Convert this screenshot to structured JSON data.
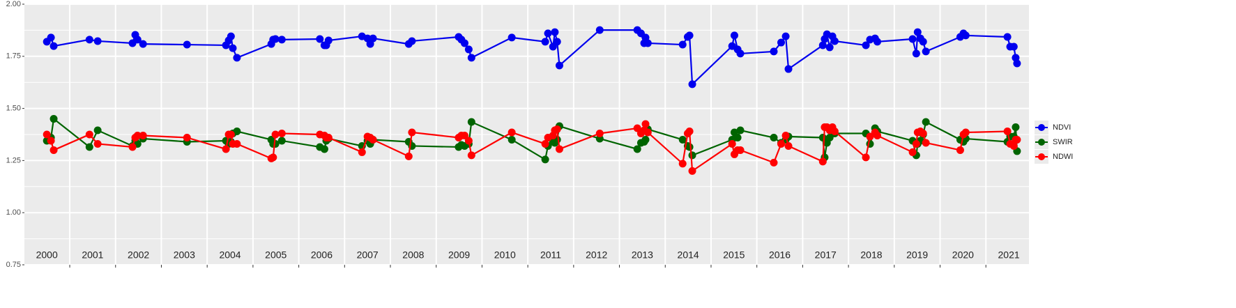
{
  "chart_data": {
    "type": "line",
    "x": [
      2000.5,
      2000.59,
      2000.65,
      2001.43,
      2001.61,
      2002.37,
      2002.43,
      2002.48,
      2002.6,
      2003.56,
      2004.41,
      2004.47,
      2004.52,
      2004.56,
      2004.65,
      2005.4,
      2005.44,
      2005.49,
      2005.63,
      2006.46,
      2006.56,
      2006.6,
      2006.65,
      2007.38,
      2007.5,
      2007.56,
      2007.62,
      2008.4,
      2008.47,
      2009.49,
      2009.55,
      2009.62,
      2009.71,
      2009.77,
      2010.65,
      2011.38,
      2011.44,
      2011.55,
      2011.59,
      2011.64,
      2011.69,
      2012.57,
      2013.39,
      2013.47,
      2013.54,
      2013.57,
      2013.62,
      2014.38,
      2014.49,
      2014.53,
      2014.59,
      2015.46,
      2015.51,
      2015.58,
      2015.64,
      2016.37,
      2016.53,
      2016.63,
      2016.69,
      2017.44,
      2017.48,
      2017.53,
      2017.59,
      2017.65,
      2017.7,
      2018.38,
      2018.47,
      2018.58,
      2018.63,
      2019.4,
      2019.48,
      2019.51,
      2019.57,
      2019.63,
      2019.69,
      2020.44,
      2020.51,
      2020.56,
      2021.47,
      2021.53,
      2021.61,
      2021.65,
      2021.68
    ],
    "series": [
      {
        "name": "NDVI",
        "color": "#0000ee",
        "values": [
          1.82,
          1.84,
          1.799,
          1.83,
          1.823,
          1.813,
          1.853,
          1.83,
          1.809,
          1.806,
          1.803,
          1.826,
          1.846,
          1.789,
          1.743,
          1.809,
          1.83,
          1.833,
          1.83,
          1.833,
          1.803,
          1.803,
          1.826,
          1.846,
          1.836,
          1.809,
          1.836,
          1.809,
          1.823,
          1.843,
          1.83,
          1.813,
          1.783,
          1.743,
          1.84,
          1.82,
          1.86,
          1.796,
          1.866,
          1.82,
          1.706,
          1.876,
          1.876,
          1.86,
          1.813,
          1.84,
          1.813,
          1.806,
          1.843,
          1.85,
          1.616,
          1.799,
          1.85,
          1.783,
          1.763,
          1.773,
          1.816,
          1.846,
          1.689,
          1.803,
          1.833,
          1.856,
          1.793,
          1.846,
          1.823,
          1.803,
          1.83,
          1.836,
          1.82,
          1.833,
          1.763,
          1.866,
          1.836,
          1.82,
          1.773,
          1.843,
          1.86,
          1.85,
          1.843,
          1.796,
          1.796,
          1.743,
          1.716
        ]
      },
      {
        "name": "SWIR",
        "color": "#006400",
        "values": [
          1.345,
          1.36,
          1.45,
          1.315,
          1.395,
          1.32,
          1.345,
          1.33,
          1.355,
          1.34,
          1.345,
          1.33,
          1.34,
          1.38,
          1.39,
          1.35,
          1.33,
          1.33,
          1.345,
          1.315,
          1.305,
          1.345,
          1.355,
          1.32,
          1.345,
          1.33,
          1.35,
          1.34,
          1.32,
          1.315,
          1.325,
          1.32,
          1.33,
          1.435,
          1.35,
          1.255,
          1.32,
          1.34,
          1.335,
          1.35,
          1.415,
          1.355,
          1.305,
          1.335,
          1.34,
          1.35,
          1.4,
          1.35,
          1.32,
          1.315,
          1.275,
          1.35,
          1.385,
          1.36,
          1.395,
          1.36,
          1.335,
          1.35,
          1.365,
          1.36,
          1.265,
          1.335,
          1.36,
          1.38,
          1.38,
          1.38,
          1.33,
          1.405,
          1.39,
          1.345,
          1.275,
          1.33,
          1.345,
          1.375,
          1.435,
          1.35,
          1.34,
          1.355,
          1.34,
          1.365,
          1.365,
          1.41,
          1.295
        ]
      },
      {
        "name": "NDWI",
        "color": "#ff0000",
        "values": [
          1.375,
          1.345,
          1.3,
          1.375,
          1.33,
          1.315,
          1.36,
          1.37,
          1.37,
          1.36,
          1.305,
          1.375,
          1.375,
          1.33,
          1.33,
          1.26,
          1.265,
          1.375,
          1.38,
          1.375,
          1.37,
          1.36,
          1.36,
          1.29,
          1.365,
          1.36,
          1.35,
          1.27,
          1.385,
          1.36,
          1.37,
          1.37,
          1.345,
          1.275,
          1.385,
          1.33,
          1.36,
          1.37,
          1.395,
          1.4,
          1.305,
          1.38,
          1.405,
          1.38,
          1.395,
          1.425,
          1.385,
          1.235,
          1.38,
          1.39,
          1.2,
          1.33,
          1.28,
          1.3,
          1.3,
          1.24,
          1.33,
          1.37,
          1.32,
          1.245,
          1.41,
          1.41,
          1.395,
          1.41,
          1.39,
          1.265,
          1.365,
          1.385,
          1.37,
          1.29,
          1.33,
          1.385,
          1.39,
          1.38,
          1.335,
          1.3,
          1.375,
          1.385,
          1.39,
          1.33,
          1.32,
          1.35,
          1.35
        ]
      }
    ],
    "xlim": [
      2000.01,
      2021.94
    ],
    "xticks": [
      {
        "value": 2000.5,
        "label": "2000"
      },
      {
        "value": 2001.5,
        "label": "2001"
      },
      {
        "value": 2002.5,
        "label": "2002"
      },
      {
        "value": 2003.5,
        "label": "2003"
      },
      {
        "value": 2004.5,
        "label": "2004"
      },
      {
        "value": 2005.5,
        "label": "2005"
      },
      {
        "value": 2006.5,
        "label": "2006"
      },
      {
        "value": 2007.5,
        "label": "2007"
      },
      {
        "value": 2008.5,
        "label": "2008"
      },
      {
        "value": 2009.5,
        "label": "2009"
      },
      {
        "value": 2010.5,
        "label": "2010"
      },
      {
        "value": 2011.5,
        "label": "2011"
      },
      {
        "value": 2012.5,
        "label": "2012"
      },
      {
        "value": 2013.5,
        "label": "2013"
      },
      {
        "value": 2014.5,
        "label": "2014"
      },
      {
        "value": 2015.5,
        "label": "2015"
      },
      {
        "value": 2016.5,
        "label": "2016"
      },
      {
        "value": 2017.5,
        "label": "2017"
      },
      {
        "value": 2018.5,
        "label": "2018"
      },
      {
        "value": 2019.5,
        "label": "2019"
      },
      {
        "value": 2020.5,
        "label": "2020"
      },
      {
        "value": 2021.5,
        "label": "2021"
      }
    ],
    "ylim": [
      0.75,
      2.0
    ],
    "yticks": [
      {
        "value": 0.75,
        "label": "0.75"
      },
      {
        "value": 1,
        "label": "1.00"
      },
      {
        "value": 1.25,
        "label": "1.25"
      },
      {
        "value": 1.5,
        "label": "1.50"
      },
      {
        "value": 1.75,
        "label": "1.75"
      },
      {
        "value": 2,
        "label": "2.00"
      }
    ],
    "grid": true,
    "legend": "right"
  }
}
